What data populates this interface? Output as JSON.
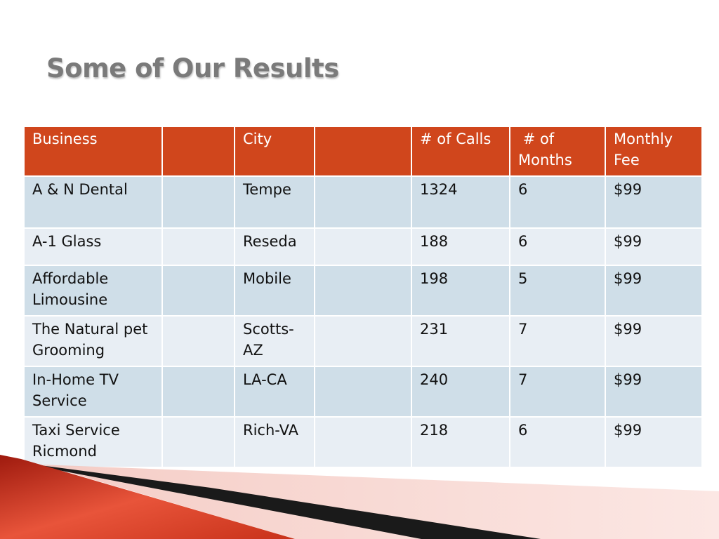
{
  "slide": {
    "title": "Some of Our Results"
  },
  "table": {
    "headers": [
      "Business",
      "",
      "City",
      "",
      "# of Calls",
      " # of Months",
      "Monthly Fee"
    ],
    "rows": [
      [
        "A & N Dental",
        "",
        "Tempe",
        "",
        "1324",
        "6",
        "$99"
      ],
      [
        "A-1 Glass",
        "",
        "Reseda",
        "",
        "188",
        "6",
        "$99"
      ],
      [
        "Affordable Limousine",
        "",
        "Mobile",
        "",
        "198",
        "5",
        "$99"
      ],
      [
        "The Natural pet Grooming",
        "",
        "Scotts-AZ",
        "",
        "231",
        "7",
        "$99"
      ],
      [
        "In-Home TV Service",
        "",
        "LA-CA",
        "",
        "240",
        "7",
        "$99"
      ],
      [
        "Taxi Service Ricmond",
        "",
        "Rich-VA",
        "",
        "218",
        "6",
        "$99"
      ]
    ]
  },
  "colors": {
    "header_bg": "#d0461c",
    "row_odd_bg": "#cfdee8",
    "row_even_bg": "#e8eef4",
    "title_color": "#7a7a7a",
    "accent_red": "#c8321a"
  }
}
